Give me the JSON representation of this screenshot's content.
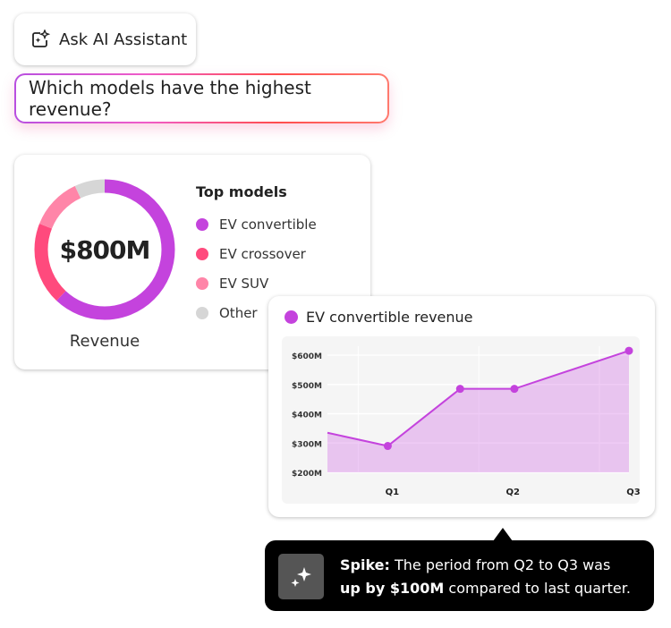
{
  "assistant_button": {
    "label": "Ask AI Assistant",
    "icon": "ai-sparkle-icon"
  },
  "prompt": {
    "text": "Which models have the highest revenue?"
  },
  "donut": {
    "total": "$800M",
    "caption": "Revenue",
    "legend_title": "Top models",
    "segments": [
      {
        "label": "EV convertible",
        "share": 62,
        "color": "#c443dd"
      },
      {
        "label": "EV crossover",
        "share": 19,
        "color": "#ff4a7d"
      },
      {
        "label": "EV SUV",
        "share": 12,
        "color": "#ff85a8"
      },
      {
        "label": "Other",
        "share": 7,
        "color": "#d6d6d6"
      }
    ]
  },
  "chart_data": {
    "type": "area",
    "title": "EV convertible revenue",
    "color": "#c443dd",
    "x_ticks": [
      {
        "x": 1,
        "label": "Q1"
      },
      {
        "x": 2,
        "label": "Q2"
      },
      {
        "x": 3,
        "label": "Q3"
      }
    ],
    "y_ticks": [
      {
        "y": 200,
        "label": "$200M"
      },
      {
        "y": 300,
        "label": "$300M"
      },
      {
        "y": 400,
        "label": "$400M"
      },
      {
        "y": 500,
        "label": "$500M"
      },
      {
        "y": 600,
        "label": "$600M"
      }
    ],
    "ylim": [
      200,
      600
    ],
    "xlim": [
      0.5,
      3
    ],
    "grid": true,
    "series": [
      {
        "x": [
          0.5,
          1,
          1.6,
          2.05,
          3
        ],
        "y": [
          335,
          290,
          485,
          485,
          615
        ],
        "markers": [
          false,
          true,
          true,
          true,
          true
        ]
      }
    ]
  },
  "tooltip": {
    "icon": "sparkle-icon",
    "bold_lead": "Spike:",
    "text_1": " The period from Q2 to Q3 was",
    "bold_2": "up by $100M",
    "text_2": " compared to last quarter."
  }
}
